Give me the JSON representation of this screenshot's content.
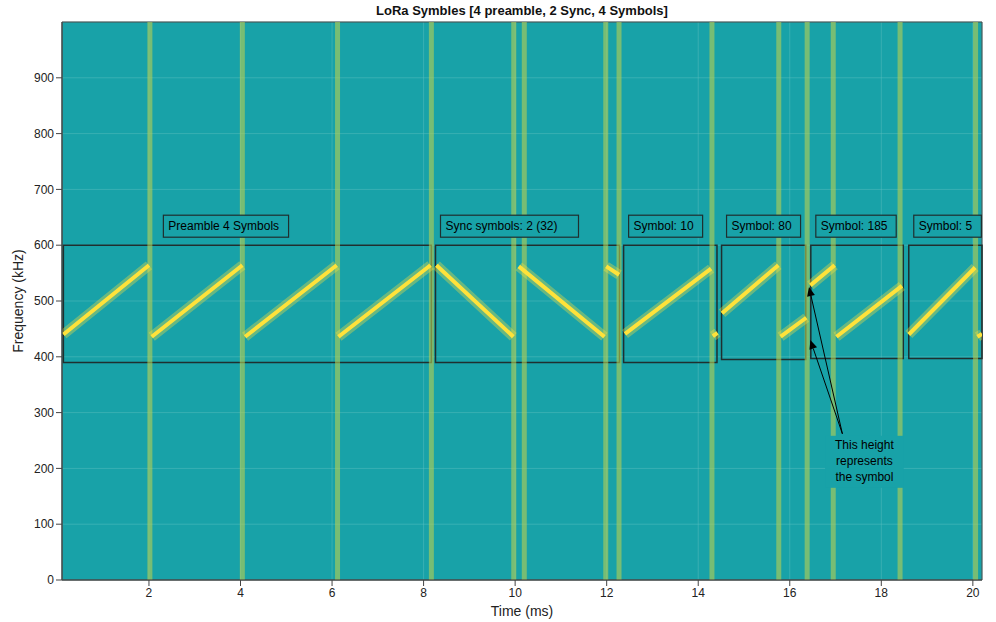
{
  "chart_data": {
    "type": "spectrogram",
    "title": "LoRa Symbles [4 preamble, 2 Sync, 4 Symbols]",
    "x_label": "Time (ms)",
    "y_label": "Frequency (kHz)",
    "xlim": [
      0.1,
      20.2
    ],
    "ylim": [
      0,
      1000
    ],
    "xticks": [
      2,
      4,
      6,
      8,
      10,
      12,
      14,
      16,
      18,
      20
    ],
    "yticks": [
      0,
      100,
      200,
      300,
      400,
      500,
      600,
      700,
      800,
      900
    ],
    "grid": true,
    "color": "#ffe23a",
    "x": [
      0.13,
      2.0,
      null,
      2.06,
      4.04,
      null,
      4.1,
      6.1,
      null,
      6.14,
      8.15,
      null,
      8.28,
      9.96,
      null,
      10.08,
      11.95,
      null,
      11.99,
      12.27,
      null,
      12.4,
      14.28,
      null,
      14.32,
      14.42,
      null,
      14.52,
      15.75,
      null,
      15.8,
      16.36,
      null,
      16.45,
      16.98,
      null,
      17.02,
      18.45,
      null,
      18.6,
      20.05,
      null,
      20.1,
      20.2
    ],
    "values": [
      440,
      564,
      null,
      436,
      564,
      null,
      436,
      564,
      null,
      436,
      564,
      null,
      564,
      436,
      null,
      562,
      436,
      null,
      562,
      547,
      null,
      441,
      558,
      null,
      437,
      443,
      null,
      478,
      564,
      null,
      436,
      470,
      null,
      528,
      564,
      null,
      436,
      527,
      null,
      440,
      560,
      null,
      436,
      441
    ],
    "discontinuities": {
      "x": [
        2.02,
        4.04,
        6.12,
        8.17,
        9.97,
        10.2,
        11.98,
        12.27,
        14.3,
        15.76,
        16.38,
        16.95,
        18.41,
        20.06
      ],
      "color": "#b8cf52"
    },
    "regions": [
      {
        "label": "Preamble 4 Symbols",
        "x": [
          0.13,
          8.17
        ],
        "y": [
          390,
          600
        ]
      },
      {
        "label": "Sync symbols: 2 (32)",
        "x": [
          8.26,
          12.28
        ],
        "y": [
          390,
          600
        ]
      },
      {
        "label": "Symbol: 10",
        "x": [
          12.37,
          14.41
        ],
        "y": [
          390,
          600
        ]
      },
      {
        "label": "Symbol: 80",
        "x": [
          14.51,
          16.35
        ],
        "y": [
          395,
          600
        ]
      },
      {
        "label": "Symbol: 185",
        "x": [
          16.46,
          18.48
        ],
        "y": [
          397,
          600
        ]
      },
      {
        "label": "Symbol: 5",
        "x": [
          18.6,
          20.2
        ],
        "y": [
          397,
          600
        ]
      }
    ],
    "annotation": {
      "text": "This height represents the symbol",
      "from": [
        17.15,
        262
      ],
      "to": [
        [
          16.42,
          525
        ],
        [
          16.45,
          430
        ]
      ]
    }
  }
}
